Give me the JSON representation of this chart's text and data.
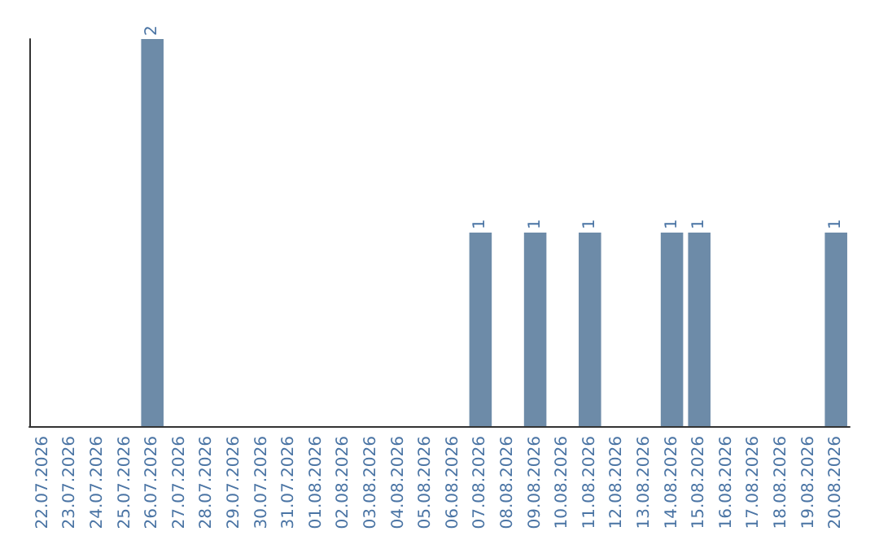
{
  "chart_data": {
    "type": "bar",
    "categories": [
      "22.07.2026",
      "23.07.2026",
      "24.07.2026",
      "25.07.2026",
      "26.07.2026",
      "27.07.2026",
      "28.07.2026",
      "29.07.2026",
      "30.07.2026",
      "31.07.2026",
      "01.08.2026",
      "02.08.2026",
      "03.08.2026",
      "04.08.2026",
      "05.08.2026",
      "06.08.2026",
      "07.08.2026",
      "08.08.2026",
      "09.08.2026",
      "10.08.2026",
      "11.08.2026",
      "12.08.2026",
      "13.08.2026",
      "14.08.2026",
      "15.08.2026",
      "16.08.2026",
      "17.08.2026",
      "18.08.2026",
      "19.08.2026",
      "20.08.2026"
    ],
    "values": [
      0,
      0,
      0,
      0,
      2,
      0,
      0,
      0,
      0,
      0,
      0,
      0,
      0,
      0,
      0,
      0,
      1,
      0,
      1,
      0,
      1,
      0,
      0,
      1,
      1,
      0,
      0,
      0,
      0,
      1
    ],
    "value_labels": [
      null,
      null,
      null,
      null,
      "2",
      null,
      null,
      null,
      null,
      null,
      null,
      null,
      null,
      null,
      null,
      null,
      "1",
      null,
      "1",
      null,
      "1",
      null,
      null,
      "1",
      "1",
      null,
      null,
      null,
      null,
      "1"
    ],
    "color": "#6d8ba8",
    "tick_labels": "x"
  }
}
